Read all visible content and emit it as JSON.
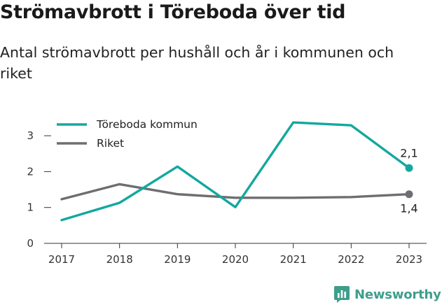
{
  "header": {
    "title": "Strömavbrott i Töreboda över tid",
    "subtitle": "Antal strömavbrott per hushåll och år i kommunen och riket"
  },
  "brand": {
    "name": "Newsworthy",
    "color": "#3e9e8c"
  },
  "chart_data": {
    "type": "line",
    "x": [
      "2017",
      "2018",
      "2019",
      "2020",
      "2021",
      "2022",
      "2023"
    ],
    "ylim": [
      0,
      3.5
    ],
    "yticks": [
      "0",
      "1",
      "2",
      "3"
    ],
    "grid": false,
    "legend_position": "top-left",
    "series": [
      {
        "name": "Töreboda kommun",
        "color": "#13a89e",
        "values": [
          0.65,
          1.13,
          2.14,
          1.01,
          3.37,
          3.29,
          2.1
        ],
        "end_label": "2,1"
      },
      {
        "name": "Riket",
        "color": "#6d6e71",
        "values": [
          1.23,
          1.65,
          1.37,
          1.27,
          1.27,
          1.29,
          1.37
        ],
        "end_label": "1,4"
      }
    ]
  }
}
